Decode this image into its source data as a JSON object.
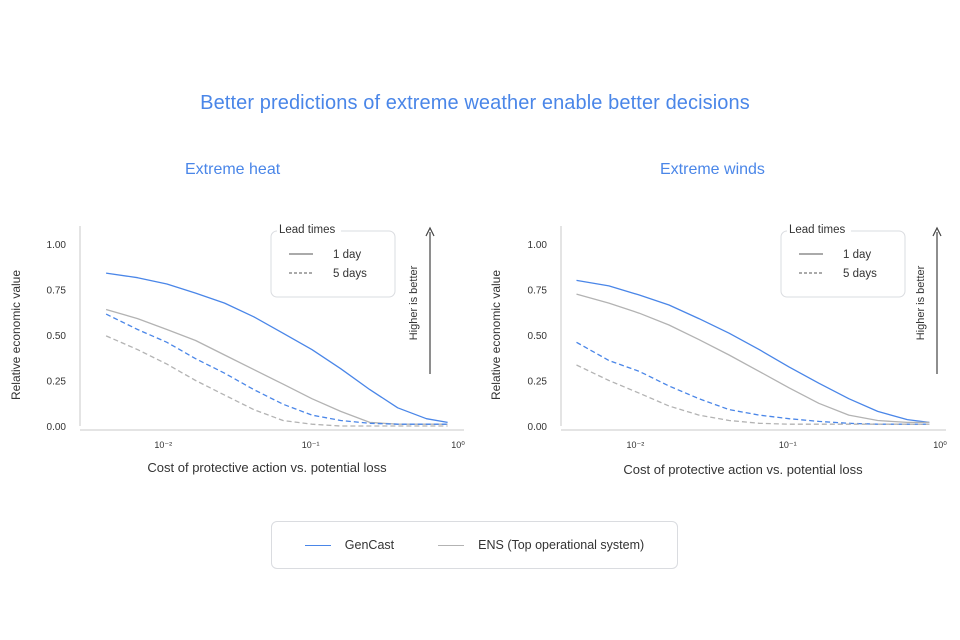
{
  "title": "Better predictions of extreme weather enable better decisions",
  "colors": {
    "gencast": "#4a86e8",
    "ens": "#b3b3b3",
    "title": "#4a86e8"
  },
  "legend": {
    "series": [
      {
        "name": "GenCast",
        "color": "#4a86e8"
      },
      {
        "name": "ENS (Top operational system)",
        "color": "#b3b3b3"
      }
    ]
  },
  "chart_data": [
    {
      "type": "line",
      "title": "Extreme heat",
      "xlabel": "Cost of protective action vs. potential loss",
      "ylabel": "Relative economic value",
      "xscale": "log",
      "xlim": [
        0.0035,
        1.0
      ],
      "ylim": [
        0,
        1.0
      ],
      "xticks": [
        {
          "value": 0.01,
          "label": "10⁻²"
        },
        {
          "value": 0.1,
          "label": "10⁻¹"
        },
        {
          "value": 1,
          "label": "10⁰"
        }
      ],
      "yticks": [
        {
          "value": 0,
          "label": "0.00"
        },
        {
          "value": 0.25,
          "label": "0.25"
        },
        {
          "value": 0.5,
          "label": "0.50"
        },
        {
          "value": 0.75,
          "label": "0.75"
        },
        {
          "value": 1.0,
          "label": "1.00"
        }
      ],
      "legend_title": "Lead times",
      "lead_times": [
        {
          "label": "1 day",
          "style": "solid"
        },
        {
          "label": "5 days",
          "style": "dashed"
        }
      ],
      "annotation": "Higher is better",
      "x": [
        0.0041,
        0.0067,
        0.0106,
        0.0166,
        0.0261,
        0.0412,
        0.065,
        0.102,
        0.16,
        0.252,
        0.39,
        0.61,
        0.85
      ],
      "series": [
        {
          "name": "GenCast",
          "lead_time": "1 day",
          "values": [
            0.84,
            0.815,
            0.78,
            0.73,
            0.675,
            0.6,
            0.51,
            0.42,
            0.315,
            0.2,
            0.1,
            0.04,
            0.02
          ]
        },
        {
          "name": "ENS (Top operational system)",
          "lead_time": "1 day",
          "values": [
            0.64,
            0.59,
            0.53,
            0.47,
            0.39,
            0.31,
            0.23,
            0.15,
            0.08,
            0.02,
            0.01,
            0.01,
            0.01
          ]
        },
        {
          "name": "GenCast",
          "lead_time": "5 days",
          "values": [
            0.615,
            0.53,
            0.46,
            0.37,
            0.29,
            0.2,
            0.12,
            0.06,
            0.03,
            0.015,
            0.01,
            0.01,
            0.01
          ]
        },
        {
          "name": "ENS (Top operational system)",
          "lead_time": "5 days",
          "values": [
            0.495,
            0.42,
            0.34,
            0.25,
            0.17,
            0.09,
            0.03,
            0.01,
            0.0,
            0.0,
            0.0,
            0.0,
            0.0
          ]
        }
      ]
    },
    {
      "type": "line",
      "title": "Extreme winds",
      "xlabel": "Cost of protective action vs. potential loss",
      "ylabel": "Relative economic value",
      "xscale": "log",
      "xlim": [
        0.0035,
        1.0
      ],
      "ylim": [
        0,
        1.0
      ],
      "xticks": [
        {
          "value": 0.01,
          "label": "10⁻²"
        },
        {
          "value": 0.1,
          "label": "10⁻¹"
        },
        {
          "value": 1,
          "label": "10⁰"
        }
      ],
      "yticks": [
        {
          "value": 0,
          "label": "0.00"
        },
        {
          "value": 0.25,
          "label": "0.25"
        },
        {
          "value": 0.5,
          "label": "0.50"
        },
        {
          "value": 0.75,
          "label": "0.75"
        },
        {
          "value": 1.0,
          "label": "1.00"
        }
      ],
      "legend_title": "Lead times",
      "lead_times": [
        {
          "label": "1 day",
          "style": "solid"
        },
        {
          "label": "5 days",
          "style": "dashed"
        }
      ],
      "annotation": "Higher is better",
      "x": [
        0.0041,
        0.0067,
        0.0106,
        0.0166,
        0.0261,
        0.0412,
        0.065,
        0.102,
        0.16,
        0.252,
        0.39,
        0.61,
        0.85
      ],
      "series": [
        {
          "name": "GenCast",
          "lead_time": "1 day",
          "values": [
            0.8,
            0.77,
            0.72,
            0.665,
            0.59,
            0.51,
            0.42,
            0.325,
            0.235,
            0.15,
            0.08,
            0.035,
            0.02
          ]
        },
        {
          "name": "ENS (Top operational system)",
          "lead_time": "1 day",
          "values": [
            0.725,
            0.675,
            0.62,
            0.555,
            0.475,
            0.39,
            0.3,
            0.21,
            0.125,
            0.06,
            0.03,
            0.02,
            0.02
          ]
        },
        {
          "name": "GenCast",
          "lead_time": "5 days",
          "values": [
            0.46,
            0.36,
            0.3,
            0.22,
            0.15,
            0.09,
            0.06,
            0.04,
            0.025,
            0.015,
            0.01,
            0.01,
            0.01
          ]
        },
        {
          "name": "ENS (Top operational system)",
          "lead_time": "5 days",
          "values": [
            0.335,
            0.25,
            0.18,
            0.11,
            0.06,
            0.03,
            0.015,
            0.01,
            0.01,
            0.01,
            0.01,
            0.01,
            0.01
          ]
        }
      ]
    }
  ]
}
